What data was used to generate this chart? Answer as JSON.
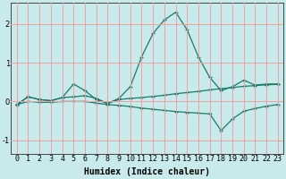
{
  "xlabel": "Humidex (Indice chaleur)",
  "bg_color": "#c8eaea",
  "grid_color": "#f0a0a0",
  "line_color": "#1a7a6a",
  "x": [
    0,
    1,
    2,
    3,
    4,
    5,
    6,
    7,
    8,
    9,
    10,
    11,
    12,
    13,
    14,
    15,
    16,
    17,
    18,
    19,
    20,
    21,
    22,
    23
  ],
  "line1": [
    -0.08,
    0.12,
    0.05,
    0.02,
    0.1,
    0.45,
    0.28,
    0.05,
    -0.05,
    0.08,
    0.38,
    1.15,
    1.75,
    2.1,
    2.3,
    1.85,
    1.15,
    0.62,
    0.28,
    0.38,
    0.55,
    0.42,
    0.45,
    0.45
  ],
  "line2": [
    -0.08,
    0.12,
    0.05,
    0.02,
    0.1,
    0.12,
    0.15,
    0.08,
    -0.05,
    0.05,
    0.08,
    0.1,
    0.13,
    0.16,
    0.2,
    0.23,
    0.26,
    0.3,
    0.33,
    0.36,
    0.39,
    0.41,
    0.43,
    0.44
  ],
  "line3": [
    -0.08,
    0.0,
    -0.02,
    -0.02,
    0.0,
    0.0,
    0.0,
    -0.04,
    -0.08,
    -0.1,
    -0.13,
    -0.17,
    -0.2,
    -0.23,
    -0.26,
    -0.28,
    -0.3,
    -0.32,
    -0.75,
    -0.45,
    -0.25,
    -0.18,
    -0.12,
    -0.08
  ],
  "ylim": [
    -1.35,
    2.55
  ],
  "xlim": [
    -0.5,
    23.5
  ],
  "yticks": [
    -1,
    0,
    1,
    2
  ],
  "xticks": [
    0,
    1,
    2,
    3,
    4,
    5,
    6,
    7,
    8,
    9,
    10,
    11,
    12,
    13,
    14,
    15,
    16,
    17,
    18,
    19,
    20,
    21,
    22,
    23
  ],
  "marker": "+",
  "tick_fontsize": 6.0,
  "label_fontsize": 7.0
}
